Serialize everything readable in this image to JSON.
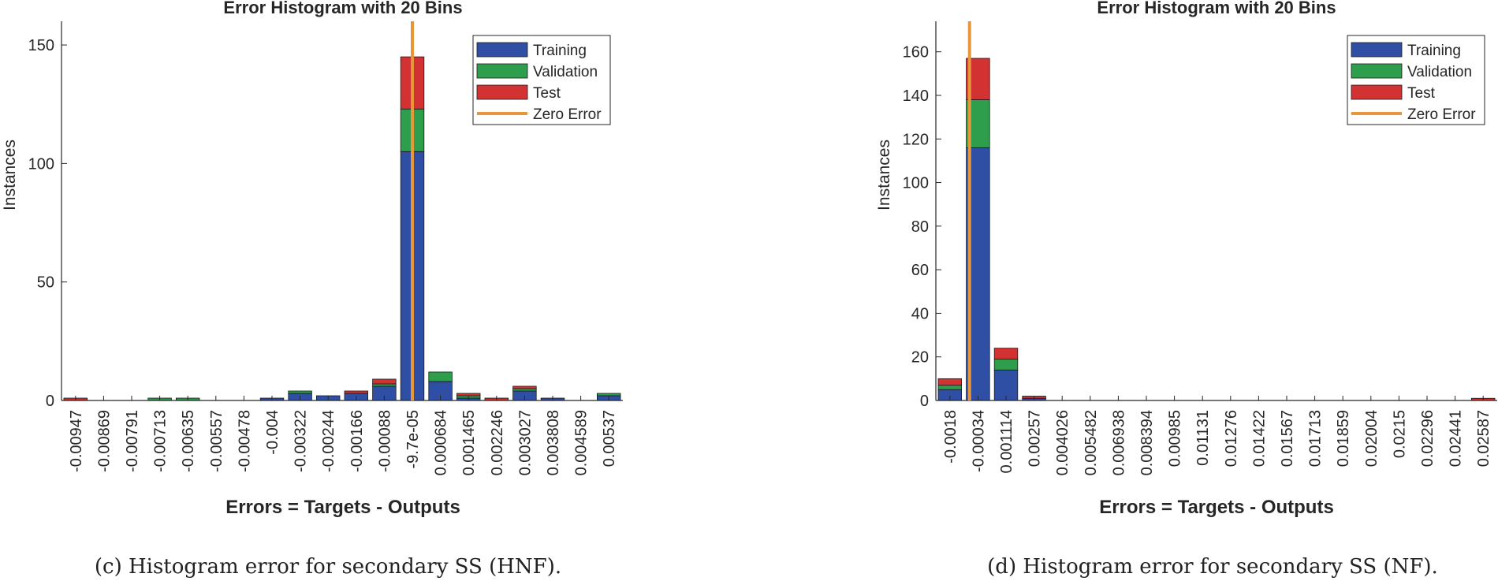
{
  "colors": {
    "training": "#2E4FA3",
    "validation": "#2E9E4C",
    "test": "#D33232",
    "zero_error": "#E8963A",
    "axis": "#262626",
    "bar_edge": "#1a1a1a"
  },
  "chart_data": [
    {
      "type": "bar",
      "stacked": true,
      "title": "Error Histogram with 20 Bins",
      "xlabel": "Errors = Targets - Outputs",
      "ylabel": "Instances",
      "ylim": [
        0,
        160
      ],
      "yticks": [
        0,
        50,
        100,
        150
      ],
      "categories": [
        "-0.00947",
        "-0.00869",
        "-0.00791",
        "-0.00713",
        "-0.00635",
        "-0.00557",
        "-0.00478",
        "-0.004",
        "-0.00322",
        "-0.00244",
        "-0.00166",
        "-0.00088",
        "-9.7e-05",
        "0.000684",
        "0.001465",
        "0.002246",
        "0.003027",
        "0.003808",
        "0.004589",
        "0.00537"
      ],
      "series": [
        {
          "name": "Training",
          "values": [
            0,
            0,
            0,
            0,
            0,
            0,
            0,
            1,
            3,
            2,
            3,
            6,
            105,
            8,
            1,
            0,
            4,
            1,
            0,
            2
          ]
        },
        {
          "name": "Validation",
          "values": [
            0,
            0,
            0,
            1,
            1,
            0,
            0,
            0,
            1,
            0,
            0,
            1,
            18,
            4,
            1,
            0,
            1,
            0,
            0,
            1
          ]
        },
        {
          "name": "Test",
          "values": [
            1,
            0,
            0,
            0,
            0,
            0,
            0,
            0,
            0,
            0,
            1,
            2,
            22,
            0,
            1,
            1,
            1,
            0,
            0,
            0
          ]
        }
      ],
      "zero_error_bin": 12.5,
      "legend": [
        "Training",
        "Validation",
        "Test",
        "Zero Error"
      ],
      "legend_position": "top-right",
      "caption": "(c) Histogram error for secondary SS (HNF)."
    },
    {
      "type": "bar",
      "stacked": true,
      "title": "Error Histogram with 20 Bins",
      "xlabel": "Errors = Targets - Outputs",
      "ylabel": "Instances",
      "ylim": [
        0,
        174
      ],
      "yticks": [
        0,
        20,
        40,
        60,
        80,
        100,
        120,
        140,
        160
      ],
      "categories": [
        "-0.0018",
        "-0.00034",
        "0.001114",
        "0.00257",
        "0.004026",
        "0.005482",
        "0.006938",
        "0.008394",
        "0.00985",
        "0.01131",
        "0.01276",
        "0.01422",
        "0.01567",
        "0.01713",
        "0.01859",
        "0.02004",
        "0.0215",
        "0.02296",
        "0.02441",
        "0.02587"
      ],
      "series": [
        {
          "name": "Training",
          "values": [
            5,
            116,
            14,
            1,
            0,
            0,
            0,
            0,
            0,
            0,
            0,
            0,
            0,
            0,
            0,
            0,
            0,
            0,
            0,
            0
          ]
        },
        {
          "name": "Validation",
          "values": [
            2,
            22,
            5,
            0,
            0,
            0,
            0,
            0,
            0,
            0,
            0,
            0,
            0,
            0,
            0,
            0,
            0,
            0,
            0,
            0
          ]
        },
        {
          "name": "Test",
          "values": [
            3,
            19,
            5,
            1,
            0,
            0,
            0,
            0,
            0,
            0,
            0,
            0,
            0,
            0,
            0,
            0,
            0,
            0,
            0,
            1
          ]
        }
      ],
      "zero_error_bin": 1.2,
      "legend": [
        "Training",
        "Validation",
        "Test",
        "Zero Error"
      ],
      "legend_position": "top-right",
      "caption": "(d) Histogram error for secondary SS (NF)."
    }
  ]
}
